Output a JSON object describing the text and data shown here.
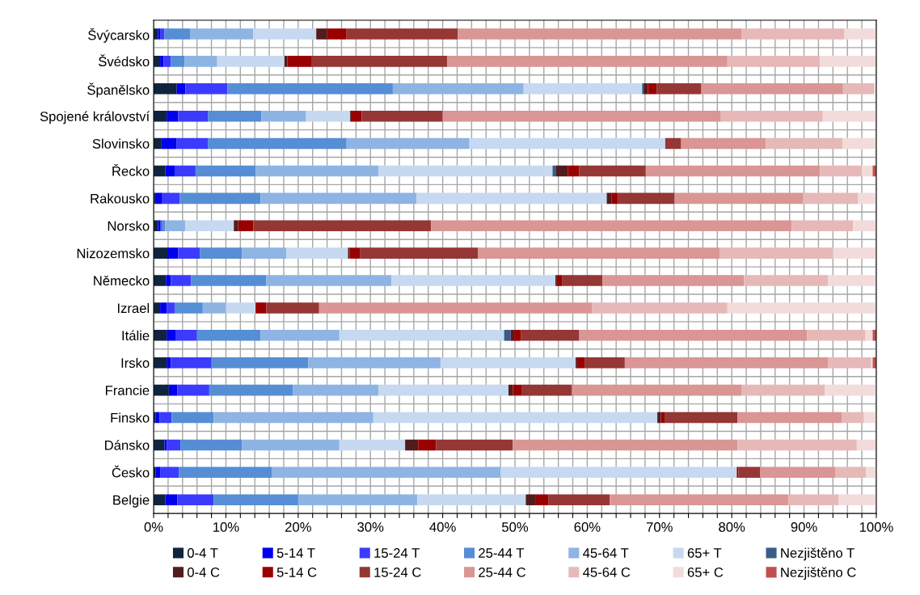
{
  "chart_data": {
    "type": "bar",
    "orientation": "horizontal",
    "stacked": true,
    "grid": true,
    "legend": "bottom",
    "categories": [
      "Švýcarsko",
      "Švédsko",
      "Španělsko",
      "Spojené království",
      "Slovinsko",
      "Řecko",
      "Rakousko",
      "Norsko",
      "Nizozemsko",
      "Německo",
      "Izrael",
      "Itálie",
      "Irsko",
      "Francie",
      "Finsko",
      "Dánsko",
      "Česko",
      "Belgie"
    ],
    "xlim": [
      0,
      100
    ],
    "xticks": [
      {
        "value": 0,
        "label": "0%"
      },
      {
        "value": 2,
        "label": null
      },
      {
        "value": 4,
        "label": null
      },
      {
        "value": 6,
        "label": null
      },
      {
        "value": 8,
        "label": null
      },
      {
        "value": 10,
        "label": "10%"
      },
      {
        "value": 12,
        "label": null
      },
      {
        "value": 14,
        "label": null
      },
      {
        "value": 16,
        "label": null
      },
      {
        "value": 18,
        "label": null
      },
      {
        "value": 20,
        "label": "20%"
      },
      {
        "value": 22,
        "label": null
      },
      {
        "value": 24,
        "label": null
      },
      {
        "value": 26,
        "label": null
      },
      {
        "value": 28,
        "label": null
      },
      {
        "value": 30,
        "label": "30%"
      },
      {
        "value": 32,
        "label": null
      },
      {
        "value": 34,
        "label": null
      },
      {
        "value": 36,
        "label": null
      },
      {
        "value": 38,
        "label": null
      },
      {
        "value": 40,
        "label": "40%"
      },
      {
        "value": 42,
        "label": null
      },
      {
        "value": 44,
        "label": null
      },
      {
        "value": 46,
        "label": null
      },
      {
        "value": 48,
        "label": null
      },
      {
        "value": 50,
        "label": "50%"
      },
      {
        "value": 52,
        "label": null
      },
      {
        "value": 54,
        "label": null
      },
      {
        "value": 56,
        "label": null
      },
      {
        "value": 58,
        "label": null
      },
      {
        "value": 60,
        "label": "60%"
      },
      {
        "value": 62,
        "label": null
      },
      {
        "value": 64,
        "label": null
      },
      {
        "value": 66,
        "label": null
      },
      {
        "value": 68,
        "label": null
      },
      {
        "value": 70,
        "label": "70%"
      },
      {
        "value": 72,
        "label": null
      },
      {
        "value": 74,
        "label": null
      },
      {
        "value": 76,
        "label": null
      },
      {
        "value": 78,
        "label": null
      },
      {
        "value": 80,
        "label": "80%"
      },
      {
        "value": 82,
        "label": null
      },
      {
        "value": 84,
        "label": null
      },
      {
        "value": 86,
        "label": null
      },
      {
        "value": 88,
        "label": null
      },
      {
        "value": 90,
        "label": "90%"
      },
      {
        "value": 92,
        "label": null
      },
      {
        "value": 94,
        "label": null
      },
      {
        "value": 96,
        "label": null
      },
      {
        "value": 98,
        "label": null
      },
      {
        "value": 100,
        "label": "100%"
      }
    ],
    "series": [
      {
        "name": "0-4 T",
        "color": "#10243e",
        "values": [
          0.6,
          0.9,
          3.2,
          1.8,
          1.1,
          1.6,
          0.2,
          0.6,
          1.9,
          1.7,
          0.9,
          1.8,
          1.8,
          2.1,
          0.3,
          1.5,
          0.3,
          1.6
        ]
      },
      {
        "name": "5-14 T",
        "color": "#0000ee",
        "values": [
          0.3,
          0.5,
          1.2,
          1.6,
          2.1,
          1.3,
          1.0,
          0.3,
          1.5,
          0.7,
          0.9,
          1.3,
          0.6,
          1.2,
          0.5,
          0.3,
          0.6,
          1.7
        ]
      },
      {
        "name": "15-24 T",
        "color": "#3b3bff",
        "values": [
          0.6,
          1.0,
          5.8,
          4.1,
          4.3,
          2.9,
          2.4,
          0.2,
          3.0,
          2.8,
          1.1,
          2.9,
          5.6,
          4.4,
          1.7,
          1.9,
          2.6,
          5.0
        ]
      },
      {
        "name": "25-44 T",
        "color": "#558ed5",
        "values": [
          3.6,
          1.9,
          22.9,
          7.4,
          19.2,
          8.3,
          11.2,
          0.5,
          5.8,
          10.4,
          3.9,
          8.8,
          13.4,
          11.6,
          5.8,
          8.5,
          12.9,
          11.7
        ]
      },
      {
        "name": "45-64 T",
        "color": "#8eb4e3",
        "values": [
          8.7,
          4.5,
          18.1,
          6.2,
          17.0,
          17.0,
          21.6,
          2.8,
          6.2,
          17.3,
          3.2,
          10.9,
          18.3,
          11.8,
          22.1,
          13.5,
          31.6,
          16.5
        ]
      },
      {
        "name": "65+ T",
        "color": "#c6d9f1",
        "values": [
          8.7,
          9.3,
          16.4,
          6.1,
          27.1,
          24.1,
          26.3,
          6.7,
          8.5,
          22.7,
          4.1,
          22.8,
          18.7,
          18.0,
          39.3,
          9.1,
          32.7,
          15.0
        ]
      },
      {
        "name": "Nezjištěno T",
        "color": "#385d8a",
        "values": [
          0,
          0,
          0.2,
          0,
          0,
          0.5,
          0,
          0,
          0,
          0,
          0,
          0.9,
          0,
          0,
          0,
          0,
          0,
          0
        ]
      },
      {
        "name": "0-4 C",
        "color": "#521c1c",
        "values": [
          1.5,
          0.4,
          0.6,
          0.2,
          0,
          1.6,
          0.7,
          0.6,
          0.2,
          0.2,
          0,
          0.5,
          0.2,
          0.6,
          0.5,
          1.8,
          0,
          1.4
        ]
      },
      {
        "name": "5-14 C",
        "color": "#990000",
        "values": [
          2.7,
          3.4,
          1.2,
          1.4,
          0,
          1.6,
          0.8,
          2.1,
          1.5,
          0.7,
          1.5,
          0.9,
          1.1,
          1.2,
          0.5,
          2.5,
          0.2,
          1.7
        ]
      },
      {
        "name": "15-24 C",
        "color": "#953735",
        "values": [
          15.4,
          18.7,
          6.2,
          11.2,
          2.2,
          9.2,
          7.9,
          24.6,
          16.3,
          5.6,
          7.3,
          8.1,
          5.5,
          7.0,
          10.1,
          10.6,
          3.0,
          8.5
        ]
      },
      {
        "name": "25-44 C",
        "color": "#d99694",
        "values": [
          39.3,
          38.8,
          19.6,
          38.5,
          11.7,
          24.1,
          17.8,
          49.9,
          33.4,
          19.6,
          37.8,
          31.5,
          28.1,
          23.5,
          14.4,
          31.1,
          10.4,
          24.7
        ]
      },
      {
        "name": "45-64 C",
        "color": "#e6b9b8",
        "values": [
          14.2,
          12.8,
          4.3,
          14.1,
          10.6,
          5.8,
          7.6,
          8.5,
          15.7,
          11.6,
          18.7,
          8.1,
          6.0,
          11.5,
          3.1,
          16.5,
          4.3,
          7.0
        ]
      },
      {
        "name": "65+ C",
        "color": "#f2dcdb",
        "values": [
          4.4,
          7.7,
          0.3,
          7.4,
          4.7,
          1.5,
          2.5,
          3.2,
          6.0,
          6.7,
          20.6,
          1.0,
          0.2,
          7.2,
          1.8,
          2.6,
          1.5,
          5.2
        ]
      },
      {
        "name": "Nezjištěno C",
        "color": "#c0504d",
        "values": [
          0,
          0,
          0,
          0,
          0,
          0.5,
          0,
          0,
          0,
          0,
          0,
          0.5,
          0.5,
          0,
          0,
          0,
          0,
          0
        ]
      }
    ]
  }
}
